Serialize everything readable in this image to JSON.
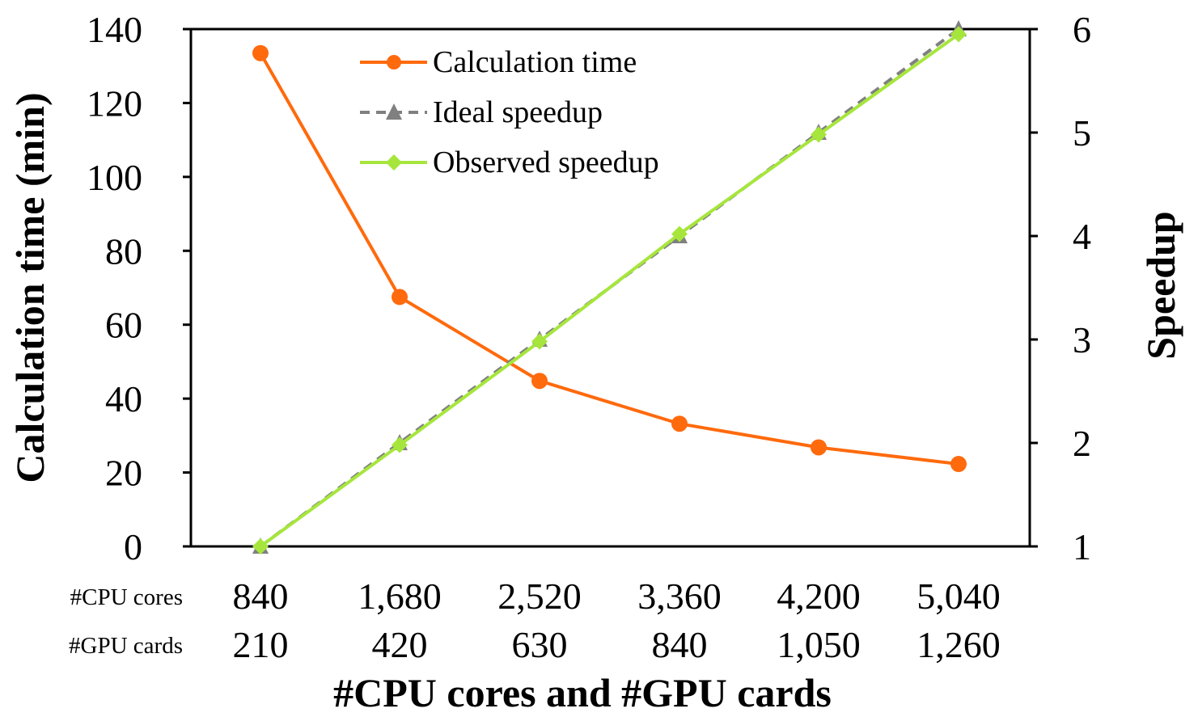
{
  "chart_data": {
    "type": "line",
    "categories_cpu": [
      "840",
      "1,680",
      "2,520",
      "3,360",
      "4,200",
      "5,040"
    ],
    "categories_gpu": [
      "210",
      "420",
      "630",
      "840",
      "1,050",
      "1,260"
    ],
    "row_labels": {
      "cpu": "#CPU cores",
      "gpu": "#GPU cards"
    },
    "xlabel": "#CPU cores and #GPU cards",
    "ylabel_left": "Calculation time (min)",
    "ylabel_right": "Speedup",
    "ylim_left": [
      0,
      140
    ],
    "ylim_right": [
      1,
      6
    ],
    "yticks_left": [
      "0",
      "20",
      "40",
      "60",
      "80",
      "100",
      "120",
      "140"
    ],
    "yticks_right": [
      "1",
      "2",
      "3",
      "4",
      "5",
      "6"
    ],
    "grid": false,
    "legend_position": "top-center",
    "series": [
      {
        "name": "Calculation time",
        "axis": "left",
        "values": [
          133.5,
          67.5,
          44.8,
          33.2,
          26.8,
          22.3
        ],
        "color": "#FF6A0D",
        "marker": "circle",
        "dash": "solid"
      },
      {
        "name": "Ideal speedup",
        "axis": "right",
        "values": [
          1,
          2,
          3,
          4,
          5,
          6
        ],
        "color": "#808080",
        "marker": "triangle",
        "dash": "dashed"
      },
      {
        "name": "Observed speedup",
        "axis": "right",
        "values": [
          1,
          1.98,
          2.98,
          4.02,
          4.98,
          5.95
        ],
        "color": "#A6E63C",
        "marker": "diamond",
        "dash": "solid"
      }
    ]
  }
}
